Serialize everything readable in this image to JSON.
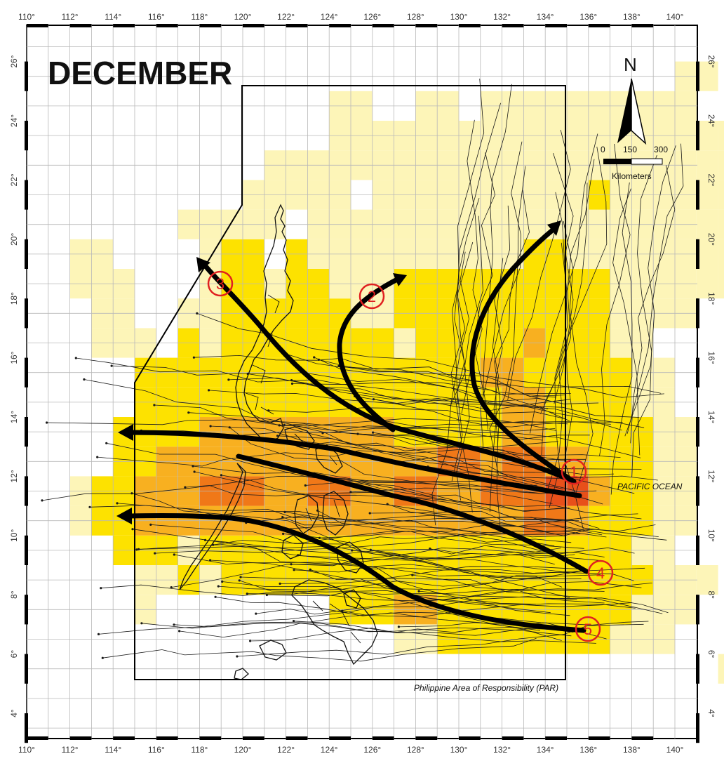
{
  "title": "DECEMBER",
  "ocean_label": "PACIFIC OCEAN",
  "par_label": "Philippine Area of Responsibility (PAR)",
  "scale": {
    "labels": [
      "0",
      "150",
      "300"
    ],
    "unit": "Kilometers"
  },
  "north_label": "N",
  "lon_ticks": [
    "110°",
    "112°",
    "114°",
    "116°",
    "118°",
    "120°",
    "122°",
    "124°",
    "126°",
    "128°",
    "130°",
    "132°",
    "134°",
    "136°",
    "138°",
    "140°"
  ],
  "lat_ticks": [
    "4°",
    "6°",
    "8°",
    "10°",
    "12°",
    "14°",
    "16°",
    "18°",
    "20°",
    "22°",
    "24°",
    "26°"
  ],
  "track_labels": [
    "1",
    "2",
    "3",
    "4",
    "5"
  ],
  "colors": {
    "light": "#fdf5b8",
    "mid": "#fce94a",
    "yellow": "#fde200",
    "orange": "#f8b020",
    "deep": "#f07818",
    "red": "#e8501a",
    "label_red": "#e02020",
    "frame": "#000000"
  }
}
